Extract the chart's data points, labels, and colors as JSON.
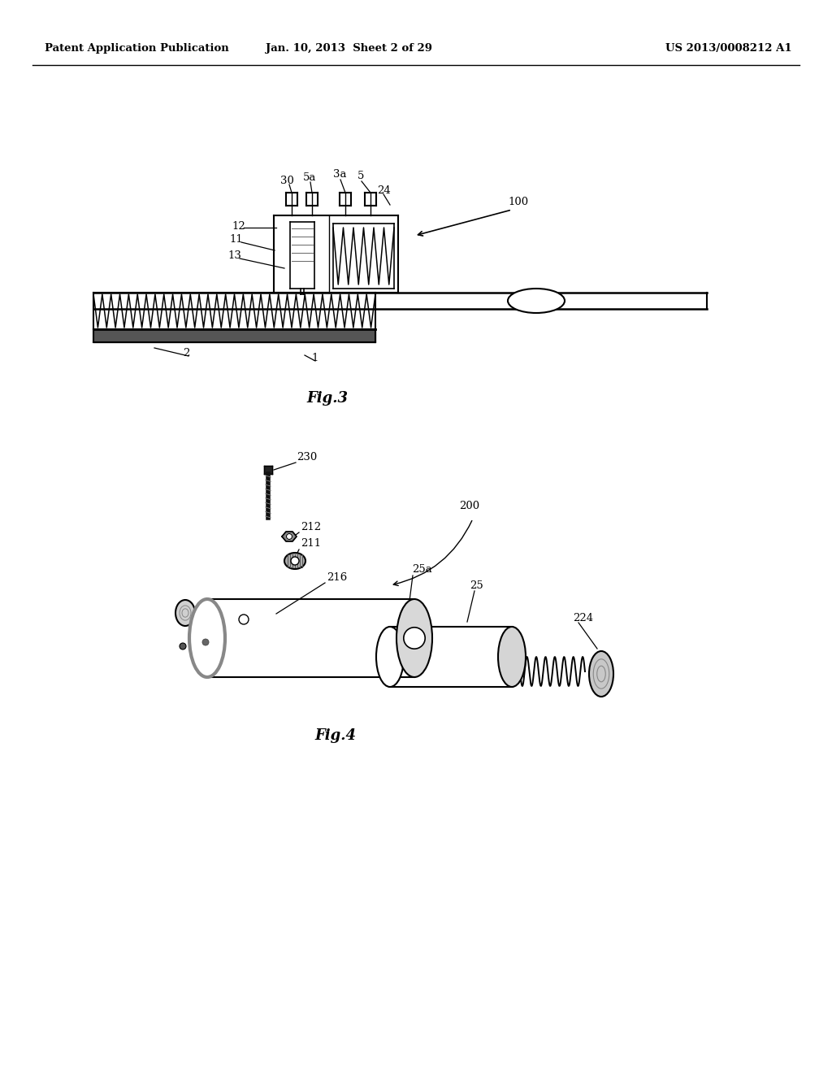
{
  "bg_color": "#ffffff",
  "header_left": "Patent Application Publication",
  "header_mid": "Jan. 10, 2013  Sheet 2 of 29",
  "header_right": "US 2013/0008212 A1",
  "fig3_caption": "Fig.3",
  "fig4_caption": "Fig.4",
  "line_color": "#000000"
}
